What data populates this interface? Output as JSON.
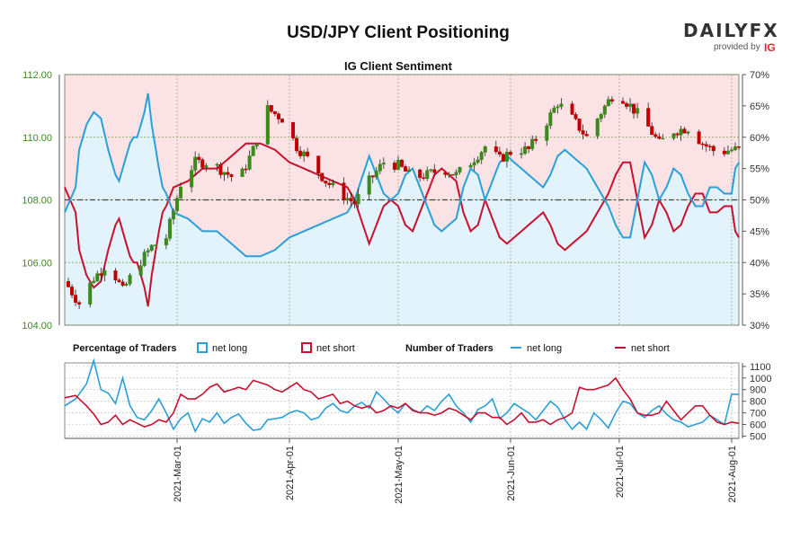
{
  "header": {
    "title": "USD/JPY Client Positioning",
    "logo_text": "DAILYFX",
    "provided_by": "provided by",
    "provider": "IG"
  },
  "chart_data": [
    {
      "type": "candlestick",
      "title": "IG Client Sentiment",
      "left_axis": {
        "ticks": [
          "104.00",
          "106.00",
          "108.00",
          "110.00",
          "112.00"
        ],
        "ylim": [
          104,
          112
        ],
        "color": "#3b8a1b"
      },
      "right_axis": {
        "ticks": [
          "30%",
          "35%",
          "40%",
          "45%",
          "50%",
          "55%",
          "60%",
          "65%",
          "70%"
        ],
        "ylim": [
          30,
          70
        ]
      },
      "x_labels": [
        "2021-Mar-01",
        "2021-Apr-01",
        "2021-May-01",
        "2021-Jun-01",
        "2021-Jul-01",
        "2021-Aug-01"
      ],
      "x_label_days": [
        31,
        62,
        92,
        123,
        153,
        184
      ],
      "x_range_days": [
        0,
        186
      ],
      "reference_line_pct": 50,
      "colors": {
        "up": "#3b8a1b",
        "down": "#c00000",
        "net_long": "#2a9fd8",
        "net_short": "#c8102e",
        "fill_short": "#fbe3e5",
        "fill_long": "#e3f3fb"
      },
      "close_series": {
        "days": [
          0,
          4,
          8,
          12,
          16,
          20,
          24,
          28,
          32,
          36,
          40,
          44,
          48,
          52,
          56,
          60,
          64,
          68,
          72,
          76,
          80,
          84,
          88,
          92,
          96,
          100,
          104,
          108,
          112,
          116,
          120,
          124,
          128,
          132,
          136,
          140,
          144,
          148,
          152,
          156,
          160,
          164,
          168,
          172,
          176,
          180,
          184
        ],
        "values": [
          105.4,
          104.7,
          105.5,
          106.0,
          105.1,
          105.9,
          106.5,
          106.8,
          108.5,
          109.2,
          109.2,
          108.9,
          108.6,
          109.6,
          110.9,
          110.6,
          109.7,
          109.2,
          108.6,
          108.2,
          107.9,
          108.6,
          109.2,
          109.1,
          108.7,
          108.8,
          109.0,
          108.8,
          109.2,
          109.7,
          109.3,
          109.6,
          109.6,
          110.3,
          111.1,
          110.6,
          110.0,
          110.8,
          111.5,
          111.0,
          110.5,
          109.8,
          110.2,
          110.3,
          109.8,
          109.5,
          109.6
        ]
      },
      "net_long_pct": {
        "days": [
          0,
          3,
          4,
          6,
          8,
          10,
          12,
          14,
          15,
          16,
          18,
          19,
          20,
          22,
          23,
          24,
          26,
          27,
          28,
          30,
          34,
          38,
          42,
          46,
          50,
          54,
          58,
          62,
          66,
          70,
          74,
          78,
          80,
          84,
          86,
          88,
          90,
          92,
          94,
          96,
          98,
          100,
          102,
          104,
          106,
          108,
          110,
          112,
          114,
          116,
          118,
          120,
          122,
          124,
          126,
          128,
          130,
          132,
          134,
          136,
          138,
          140,
          142,
          144,
          146,
          148,
          150,
          152,
          154,
          156,
          158,
          160,
          162,
          164,
          166,
          168,
          170,
          172,
          174,
          176,
          178,
          180,
          182,
          184,
          185,
          186
        ],
        "values": [
          48,
          52,
          58,
          62,
          64,
          63,
          58,
          54,
          53,
          55,
          59,
          60,
          60,
          64,
          67,
          62,
          55,
          52,
          51,
          48,
          47,
          45,
          45,
          43,
          41,
          41,
          42,
          44,
          45,
          46,
          47,
          48,
          50,
          57,
          54,
          51,
          50,
          51,
          54,
          55,
          52,
          49,
          46,
          45,
          46,
          47,
          52,
          55,
          54,
          50,
          53,
          56,
          57,
          56,
          55,
          54,
          53,
          52,
          54,
          57,
          58,
          57,
          56,
          55,
          53,
          51,
          49,
          46,
          44,
          44,
          50,
          56,
          54,
          50,
          52,
          55,
          54,
          51,
          49,
          49,
          52,
          52,
          51,
          51,
          55,
          56
        ]
      },
      "net_long_source": "estimated"
    },
    {
      "type": "line",
      "title": "Number of Traders",
      "y_ticks": [
        "500",
        "600",
        "700",
        "800",
        "900",
        "1000",
        "1100"
      ],
      "ylim": [
        480,
        1130
      ],
      "x_range_days": [
        0,
        186
      ],
      "series": [
        {
          "name": "net long",
          "color": "#2a9fd8",
          "days": [
            0,
            3,
            6,
            8,
            10,
            12,
            14,
            16,
            18,
            20,
            22,
            24,
            26,
            28,
            30,
            32,
            34,
            36,
            38,
            40,
            42,
            44,
            46,
            48,
            50,
            52,
            54,
            56,
            58,
            60,
            62,
            64,
            66,
            68,
            70,
            72,
            74,
            76,
            78,
            80,
            82,
            84,
            86,
            88,
            90,
            92,
            94,
            96,
            98,
            100,
            102,
            104,
            106,
            108,
            110,
            112,
            114,
            116,
            118,
            120,
            122,
            124,
            126,
            128,
            130,
            132,
            134,
            136,
            138,
            140,
            142,
            144,
            146,
            148,
            150,
            152,
            154,
            156,
            158,
            160,
            162,
            164,
            166,
            168,
            170,
            172,
            174,
            176,
            178,
            180,
            182,
            184,
            186
          ],
          "values": [
            760,
            820,
            950,
            1150,
            900,
            870,
            780,
            1000,
            760,
            660,
            640,
            720,
            820,
            700,
            560,
            650,
            700,
            540,
            650,
            620,
            700,
            610,
            660,
            690,
            610,
            550,
            560,
            640,
            650,
            660,
            700,
            720,
            700,
            640,
            660,
            740,
            780,
            720,
            700,
            760,
            790,
            740,
            880,
            820,
            750,
            700,
            780,
            730,
            700,
            760,
            720,
            800,
            860,
            760,
            700,
            620,
            730,
            760,
            820,
            650,
            700,
            780,
            740,
            700,
            640,
            720,
            800,
            750,
            640,
            560,
            620,
            560,
            700,
            640,
            570,
            700,
            800,
            780,
            700,
            660,
            720,
            760,
            690,
            640,
            620,
            580,
            600,
            620,
            680,
            640,
            600,
            860,
            860
          ]
        },
        {
          "name": "net short",
          "color": "#c8102e",
          "days": [
            0,
            3,
            6,
            8,
            10,
            12,
            14,
            16,
            18,
            20,
            22,
            24,
            26,
            28,
            30,
            32,
            34,
            36,
            38,
            40,
            42,
            44,
            46,
            48,
            50,
            52,
            54,
            56,
            58,
            60,
            62,
            64,
            66,
            68,
            70,
            72,
            74,
            76,
            78,
            80,
            82,
            84,
            86,
            88,
            90,
            92,
            94,
            96,
            98,
            100,
            102,
            104,
            106,
            108,
            110,
            112,
            114,
            116,
            118,
            120,
            122,
            124,
            126,
            128,
            130,
            132,
            134,
            136,
            138,
            140,
            142,
            144,
            146,
            148,
            150,
            152,
            154,
            156,
            158,
            160,
            162,
            164,
            166,
            168,
            170,
            172,
            174,
            176,
            178,
            180,
            182,
            184,
            186
          ],
          "values": [
            830,
            850,
            760,
            690,
            600,
            620,
            680,
            600,
            640,
            610,
            580,
            600,
            640,
            620,
            700,
            860,
            820,
            820,
            860,
            920,
            950,
            880,
            900,
            920,
            900,
            980,
            960,
            940,
            900,
            880,
            920,
            960,
            900,
            880,
            820,
            840,
            860,
            780,
            800,
            760,
            740,
            760,
            700,
            720,
            760,
            740,
            780,
            720,
            700,
            700,
            680,
            700,
            740,
            720,
            680,
            640,
            700,
            700,
            660,
            660,
            600,
            640,
            700,
            620,
            620,
            640,
            600,
            640,
            660,
            700,
            920,
            900,
            900,
            920,
            940,
            1000,
            900,
            820,
            700,
            680,
            680,
            700,
            800,
            720,
            640,
            700,
            760,
            760,
            680,
            620,
            600,
            620,
            610
          ]
        }
      ]
    }
  ],
  "legend": {
    "pct_title": "Percentage of Traders",
    "count_title": "Number of Traders",
    "net_long": "net long",
    "net_short": "net short"
  }
}
